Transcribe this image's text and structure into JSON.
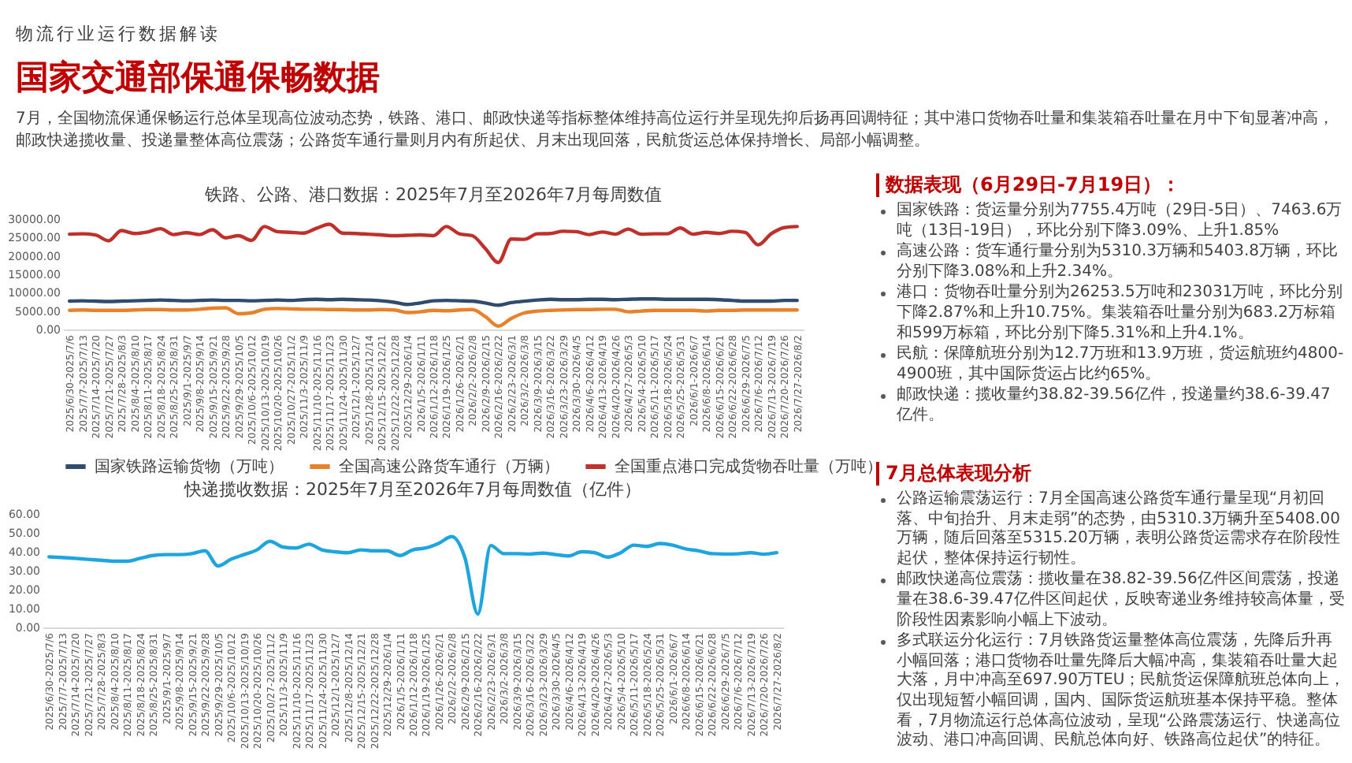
{
  "chart_data": [
    {
      "type": "other",
      "title": "国家交通部保通保畅数据",
      "subtitle": "物流行业运行数据解读",
      "annotations": [
        "7月，全国物流保通保畅运行总体呈现高位波动态势，铁路、港口、邮政快递等指标整体维持高位运行并呈现先抑后扬再回调特征；其中港口货物吞吐量和集装箱吞吐量在月中下旬显著冲高，邮政快递揽收量、投递量整体高位震荡；公路货车通行量则月内有所起伏、月末出现回落，民航货运总体保持增长、局部小幅调整。"
      ]
    },
    {
      "type": "line",
      "title": "铁路、公路、港口数据：2025年7月至2026年7月每周数值",
      "categories": [
        "2025/6/30-2025/7/6",
        "2025/7/7-2025/7/13",
        "2025/7/14-2025/7/20",
        "2025/7/21-2025/7/27",
        "2025/7/28-2025/8/3",
        "2025/8/4-2025/8/10",
        "2025/8/11-2025/8/17",
        "2025/8/18-2025/8/24",
        "2025/8/25-2025/8/31",
        "2025/9/1-2025/9/7",
        "2025/9/8-2025/9/14",
        "2025/9/15-2025/9/21",
        "2025/9/22-2025/9/28",
        "2025/9/29-2025/10/5",
        "2025/10/6-2025/10/12",
        "2025/10/13-2025/10/19",
        "2025/10/20-2025/10/26",
        "2025/10/27-2025/11/2",
        "2025/11/3-2025/11/9",
        "2025/11/10-2025/11/16",
        "2025/11/17-2025/11/23",
        "2025/11/24-2025/11/30",
        "2025/12/1-2025/12/7",
        "2025/12/8-2025/12/14",
        "2025/12/15-2025/12/21",
        "2025/12/22-2025/12/28",
        "2025/12/29-2026/1/4",
        "2026/1/5-2026/1/11",
        "2026/1/12-2026/1/18",
        "2026/1/19-2026/1/25",
        "2026/1/26-2026/2/1",
        "2026/2/2-2026/2/8",
        "2026/2/9-2026/2/15",
        "2026/2/16-2026/2/22",
        "2026/2/23-2026/3/1",
        "2026/3/2-2026/3/8",
        "2026/3/9-2026/3/15",
        "2026/3/16-2026/3/22",
        "2026/3/23-2026/3/29",
        "2026/3/30-2026/4/5",
        "2026/4/6-2026/4/12",
        "2026/4/13-2026/4/19",
        "2026/4/20-2026/4/26",
        "2026/4/27-2026/5/3",
        "2026/5/4-2026/5/10",
        "2026/5/11-2026/5/17",
        "2026/5/18-2026/5/24",
        "2026/5/25-2026/5/31",
        "2026/6/1-2026/6/7",
        "2026/6/8-2026/6/14",
        "2026/6/15-2026/6/21",
        "2026/6/22-2026/6/28",
        "2026/6/29-2026/7/5",
        "2026/7/6-2026/7/12",
        "2026/7/13-2026/7/19",
        "2026/7/20-2026/7/26",
        "2026/7/27-2026/8/2"
      ],
      "series": [
        {
          "name": "国家铁路运输货物（万吨）",
          "color": "#2f4b6e",
          "values": [
            7700,
            7800,
            7700,
            7600,
            7700,
            7800,
            7900,
            8000,
            7900,
            7800,
            7900,
            8000,
            7900,
            7900,
            7800,
            7900,
            8000,
            7900,
            8100,
            8200,
            8100,
            8200,
            8100,
            8000,
            7800,
            7400,
            6800,
            7200,
            7800,
            7900,
            7800,
            7700,
            7200,
            6600,
            7300,
            7700,
            8000,
            8200,
            8100,
            8100,
            8200,
            8200,
            8100,
            8200,
            8300,
            8300,
            8200,
            8200,
            8200,
            8200,
            8100,
            7900,
            7700,
            7700,
            7700,
            7900,
            7900
          ]
        },
        {
          "name": "全国高速公路货车通行（万辆）",
          "color": "#e8822a",
          "values": [
            5200,
            5300,
            5200,
            5200,
            5200,
            5300,
            5400,
            5400,
            5300,
            5300,
            5500,
            5800,
            5900,
            4300,
            4500,
            5500,
            5700,
            5600,
            5500,
            5500,
            5400,
            5400,
            5300,
            5300,
            5400,
            5300,
            4600,
            4800,
            5200,
            5100,
            5300,
            5400,
            3500,
            900,
            3000,
            4500,
            5000,
            5200,
            5300,
            5400,
            5400,
            5500,
            5500,
            4800,
            5000,
            5200,
            5200,
            5200,
            5200,
            5000,
            5200,
            5200,
            5300,
            5300,
            5300,
            5300,
            5300
          ]
        },
        {
          "name": "全国重点港口完成货物吞吐量（万吨）",
          "color": "#c0302b",
          "values": [
            25900,
            26000,
            25700,
            24100,
            26900,
            26100,
            26500,
            27400,
            25800,
            26300,
            25800,
            27100,
            24900,
            25500,
            24200,
            28000,
            26600,
            26400,
            26200,
            27500,
            28600,
            26200,
            26100,
            25900,
            25700,
            25500,
            25600,
            25700,
            25500,
            28000,
            26000,
            25500,
            22000,
            18200,
            24600,
            24500,
            26000,
            26100,
            26700,
            26600,
            25800,
            26500,
            25900,
            27300,
            25900,
            26000,
            26000,
            27600,
            25900,
            26400,
            26100,
            26700,
            26400,
            23000,
            26000,
            27700,
            28000
          ]
        }
      ],
      "ylim": [
        0,
        30000
      ],
      "yticks": [
        {
          "value": 0,
          "label": "0.00"
        },
        {
          "value": 5000,
          "label": "5000.00"
        },
        {
          "value": 10000,
          "label": "10000.00"
        },
        {
          "value": 15000,
          "label": "15000.00"
        },
        {
          "value": 20000,
          "label": "20000.00"
        },
        {
          "value": 25000,
          "label": "25000.00"
        },
        {
          "value": 30000,
          "label": "30000.00"
        }
      ],
      "legend": "bottom"
    },
    {
      "type": "line",
      "title": "快递揽收数据：2025年7月至2026年7月每周数值（亿件）",
      "categories": [
        "2025/6/30-2025/7/6",
        "2025/7/7-2025/7/13",
        "2025/7/14-2025/7/20",
        "2025/7/21-2025/7/27",
        "2025/7/28-2025/8/3",
        "2025/8/4-2025/8/10",
        "2025/8/11-2025/8/17",
        "2025/8/18-2025/8/24",
        "2025/8/25-2025/8/31",
        "2025/9/1-2025/9/7",
        "2025/9/8-2025/9/14",
        "2025/9/15-2025/9/21",
        "2025/9/22-2025/9/28",
        "2025/9/29-2025/10/5",
        "2025/10/6-2025/10/12",
        "2025/10/13-2025/10/19",
        "2025/10/20-2025/10/26",
        "2025/10/27-2025/11/2",
        "2025/11/3-2025/11/9",
        "2025/11/10-2025/11/16",
        "2025/11/17-2025/11/23",
        "2025/11/24-2025/11/30",
        "2025/12/1-2025/12/7",
        "2025/12/8-2025/12/14",
        "2025/12/15-2025/12/21",
        "2025/12/22-2025/12/28",
        "2025/12/29-2026/1/4",
        "2026/1/5-2026/1/11",
        "2026/1/12-2026/1/18",
        "2026/1/19-2026/1/25",
        "2026/1/26-2026/2/1",
        "2026/2/2-2026/2/8",
        "2026/2/9-2026/2/15",
        "2026/2/16-2026/2/22",
        "2026/2/23-2026/3/1",
        "2026/3/2-2026/3/8",
        "2026/3/9-2026/3/15",
        "2026/3/16-2026/3/22",
        "2026/3/23-2026/3/29",
        "2026/3/30-2026/4/5",
        "2026/4/6-2026/4/12",
        "2026/4/13-2026/4/19",
        "2026/4/20-2026/4/26",
        "2026/4/27-2026/5/3",
        "2026/5/4-2026/5/10",
        "2026/5/11-2026/5/17",
        "2026/5/18-2026/5/24",
        "2026/5/25-2026/5/31",
        "2026/6/1-2026/6/7",
        "2026/6/8-2026/6/14",
        "2026/6/15-2026/6/21",
        "2026/6/22-2026/6/28",
        "2026/6/29-2026/7/5",
        "2026/7/6-2026/7/12",
        "2026/7/13-2026/7/19",
        "2026/7/20-2026/7/26",
        "2026/7/27-2026/8/2"
      ],
      "series": [
        {
          "color": "#1ea5e0",
          "values": [
            37.3,
            37,
            36.5,
            36,
            35.5,
            35,
            35,
            36.5,
            38,
            38.5,
            38.5,
            39,
            40.5,
            32.5,
            36,
            38.5,
            41,
            45.5,
            42.5,
            42,
            44,
            41,
            40,
            39.5,
            41,
            40.5,
            40.5,
            38,
            41,
            42,
            44.5,
            48,
            37,
            7.1,
            43.3,
            39,
            39,
            38.8,
            39.3,
            38.5,
            37.8,
            40,
            39.5,
            37.2,
            39.5,
            43.5,
            42.8,
            44.4,
            43.5,
            41.5,
            40.5,
            39,
            38.8,
            38.9,
            39.5,
            38.7,
            39.5
          ]
        }
      ],
      "ylim": [
        0,
        60
      ],
      "yticks": [
        {
          "value": 0,
          "label": "0.00"
        },
        {
          "value": 10,
          "label": "10.00"
        },
        {
          "value": 20,
          "label": "20.00"
        },
        {
          "value": 30,
          "label": "30.00"
        },
        {
          "value": 40,
          "label": "40.00"
        },
        {
          "value": 50,
          "label": "50.00"
        },
        {
          "value": 60,
          "label": "60.00"
        }
      ]
    },
    {
      "type": "other",
      "title": "数据表现（6月29日-7月19日）：",
      "annotations": [
        "国家铁路：货运量分别为7755.4万吨（29日-5日）、7463.6万吨（13日-19日），环比分别下降3.09%、上升1.85%",
        "高速公路：货车通行量分别为5310.3万辆和5403.8万辆，环比分别下降3.08%和上升2.34%。",
        "港口：货物吞吐量分别为26253.5万吨和23031万吨，环比分别下降2.87%和上升10.75%。集装箱吞吐量分别为683.2万标箱和599万标箱，环比分别下降5.31%和上升4.1%。",
        "民航：保障航班分别为12.7万班和13.9万班，货运航班约4800-4900班，其中国际货运占比约65%。",
        "邮政快递：揽收量约38.82-39.56亿件，投递量约38.6-39.47亿件。"
      ]
    },
    {
      "type": "other",
      "title": "7月总体表现分析",
      "annotations": [
        "公路运输震荡运行：7月全国高速公路货车通行量呈现“月初回落、中旬抬升、月末走弱”的态势，由5310.3万辆升至5408.00万辆，随后回落至5315.20万辆，表明公路货运需求存在阶段性起伏，整体保持运行韧性。",
        "邮政快递高位震荡：揽收量在38.82-39.56亿件区间震荡，投递量在38.6-39.47亿件区间起伏，反映寄递业务维持较高体量，受阶段性因素影响小幅上下波动。",
        "多式联运分化运行：7月铁路货运量整体高位震荡，先降后升再小幅回落；港口货物吞吐量先降后大幅冲高，集装箱吞吐量大起大落，月中冲高至697.90万TEU；民航货运保障航班总体向上，仅出现短暂小幅回调，国内、国际货运航班基本保持平稳。整体看，7月物流运行总体高位波动，呈现“公路震荡运行、快递高位波动、港口冲高回调、民航总体向好、铁路高位起伏”的特征。"
      ]
    }
  ]
}
